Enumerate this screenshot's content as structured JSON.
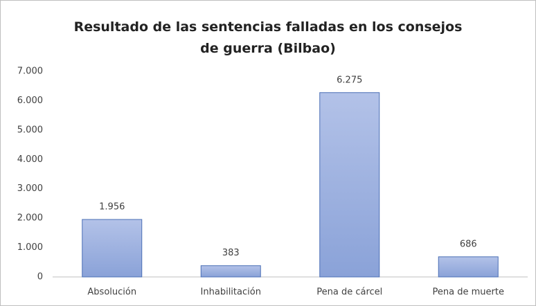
{
  "chart_data": {
    "type": "bar",
    "title": "Resultado de las sentencias falladas en los consejos de guerra (Bilbao)",
    "categories": [
      "Absolución",
      "Inhabilitación",
      "Pena de cárcel",
      "Pena de muerte"
    ],
    "values": [
      1956,
      383,
      6275,
      686
    ],
    "value_labels": [
      "1.956",
      "383",
      "6.275",
      "686"
    ],
    "color": "#9fb3e3",
    "ylim": [
      0,
      7000
    ],
    "yticks": [
      0,
      {
        "value": 1000,
        "label": "1.000"
      },
      {
        "value": 2000,
        "label": "2.000"
      },
      {
        "value": 3000,
        "label": "3.000"
      },
      {
        "value": 4000,
        "label": "4.000"
      },
      {
        "value": 5000,
        "label": "5.000"
      },
      {
        "value": 6000,
        "label": "6.000"
      },
      {
        "value": 7000,
        "label": "7.000"
      }
    ],
    "grid": false
  }
}
